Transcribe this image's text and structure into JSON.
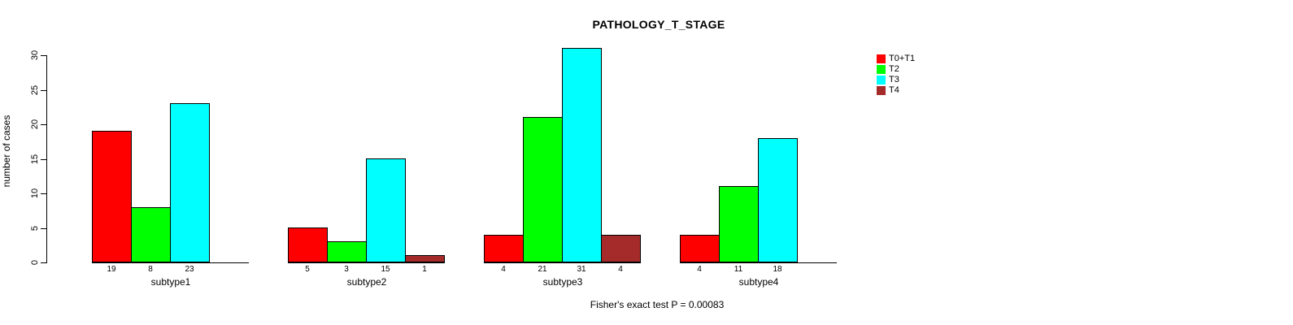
{
  "chart_data": {
    "type": "bar",
    "title": "PATHOLOGY_T_STAGE",
    "ylabel": "number of cases",
    "xlabel": "",
    "annotation": "Fisher's exact test P = 0.00083",
    "ylim": [
      0,
      30
    ],
    "yticks": [
      0,
      5,
      10,
      15,
      20,
      25,
      30
    ],
    "categories": [
      "subtype1",
      "subtype2",
      "subtype3",
      "subtype4"
    ],
    "series": [
      {
        "name": "T0+T1",
        "color": "#ff0000",
        "values": [
          19,
          5,
          4,
          4
        ]
      },
      {
        "name": "T2",
        "color": "#00ff00",
        "values": [
          8,
          3,
          21,
          11
        ]
      },
      {
        "name": "T3",
        "color": "#00ffff",
        "values": [
          23,
          15,
          31,
          18
        ]
      },
      {
        "name": "T4",
        "color": "#a52a2a",
        "values": [
          0,
          1,
          4,
          0
        ]
      }
    ],
    "bar_value_labels_shown": true,
    "legend_position": "top-right",
    "grid": false,
    "axis_color": "#000000",
    "text_color": "#000000",
    "background_color": "#ffffff"
  }
}
